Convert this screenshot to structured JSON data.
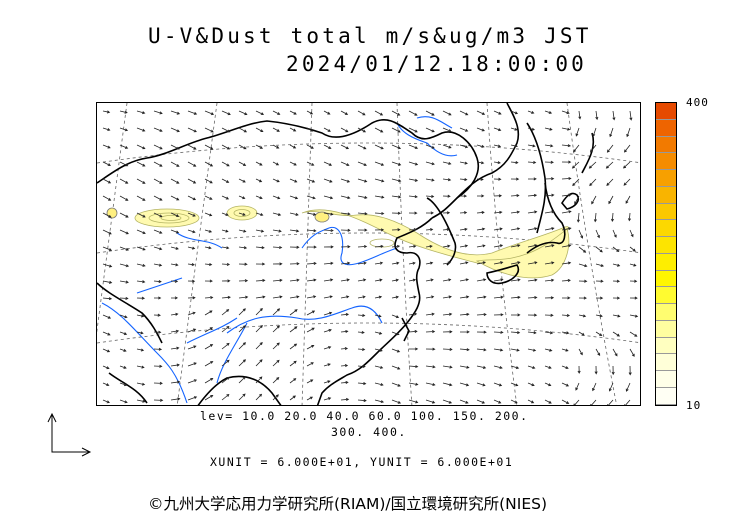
{
  "title": {
    "line1": "U-V&Dust total m/s&ug/m3 JST",
    "line2": "2024/01/12.18:00:00"
  },
  "colorbar": {
    "max_label": "400",
    "min_label": "10",
    "colors": [
      "#e64a00",
      "#ee6400",
      "#f27a00",
      "#f58c00",
      "#f7a000",
      "#f9b400",
      "#fbc800",
      "#fcd800",
      "#fde400",
      "#feee00",
      "#fff600",
      "#fffb30",
      "#fffd70",
      "#fffea0",
      "#ffffc0",
      "#ffffd8",
      "#ffffe8",
      "#fffff4"
    ]
  },
  "levels": {
    "line1": "lev= 10.0 20.0 40.0 60.0 100. 150. 200.",
    "line2": "300. 400."
  },
  "units": {
    "line": "XUNIT = 6.000E+01, YUNIT = 6.000E+01"
  },
  "copyright": "©九州大学応用力学研究所(RIAM)/国立環境研究所(NIES)",
  "colors": {
    "coastline": "#000000",
    "rivers": "#1464ff",
    "dust_fill": "#fffab0",
    "dust_edge": "#b4b464",
    "grid": "#666666",
    "vectors": "#222222"
  },
  "wind_field_shown": true,
  "graticule_shown": true
}
